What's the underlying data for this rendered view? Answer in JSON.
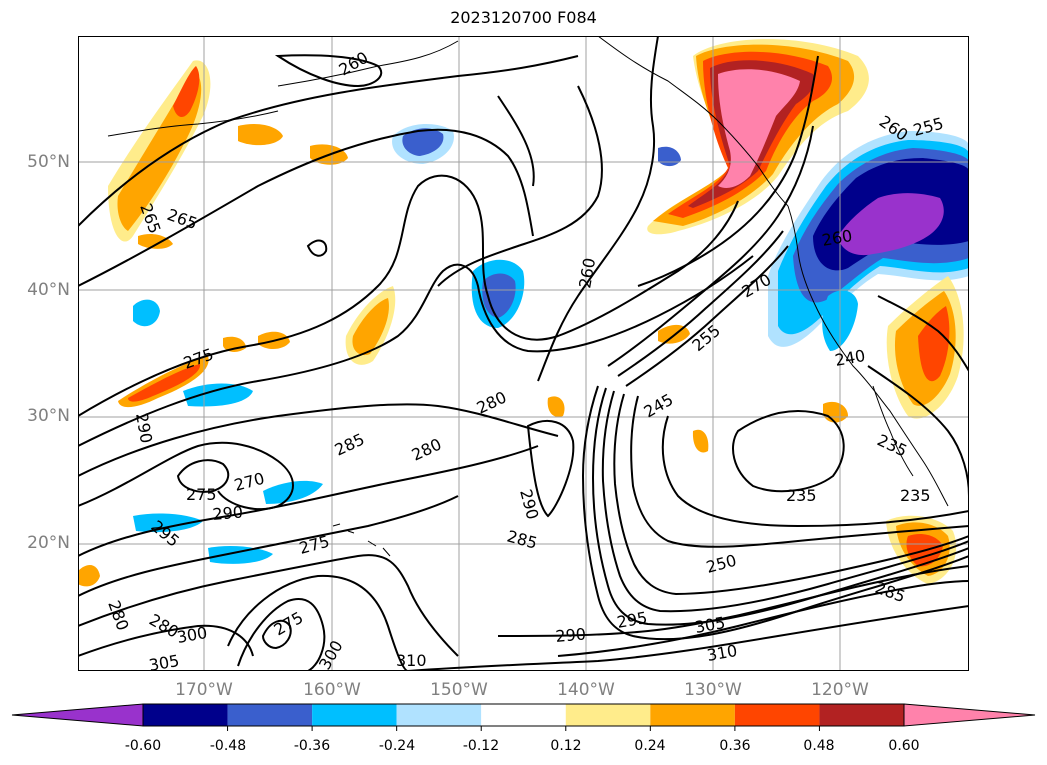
{
  "title": "2023120700 F084",
  "lat_labels": [
    "50°N",
    "40°N",
    "30°N",
    "20°N"
  ],
  "lon_labels": [
    "170°W",
    "160°W",
    "150°W",
    "140°W",
    "130°W",
    "120°W"
  ],
  "colorbar": {
    "ticks": [
      "-0.60",
      "-0.48",
      "-0.36",
      "-0.24",
      "-0.12",
      "0.12",
      "0.24",
      "0.36",
      "0.48",
      "0.60"
    ],
    "colors": [
      "#9932cc",
      "#00008b",
      "#3a5fcd",
      "#00bfff",
      "#b0e2ff",
      "#ffffff",
      "#ffec8b",
      "#ffa500",
      "#ff4500",
      "#b22222",
      "#ff82ab"
    ]
  },
  "contour_labels": [
    "265",
    "265",
    "275",
    "290",
    "270",
    "275",
    "290",
    "295",
    "280",
    "280",
    "300",
    "305",
    "275",
    "275",
    "300",
    "310",
    "285",
    "280",
    "280",
    "290",
    "285",
    "260",
    "270",
    "255",
    "245",
    "250",
    "295",
    "290",
    "305",
    "310",
    "285",
    "240",
    "235",
    "235",
    "235",
    "260",
    "260",
    "255",
    "260"
  ]
}
